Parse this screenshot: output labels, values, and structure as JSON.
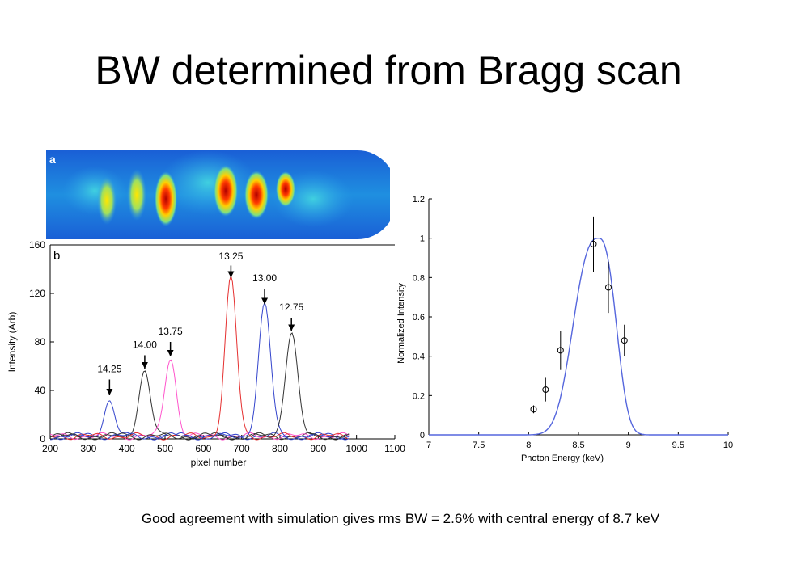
{
  "slide": {
    "title": "BW determined from Bragg scan",
    "caption": "Good agreement with simulation gives rms BW = 2.6% with central energy of 8.7 keV"
  },
  "colors": {
    "red": "#e53030",
    "blue": "#3344cc",
    "black": "#333333",
    "magenta": "#ff55cc",
    "fit": "#5566dd",
    "heat_bg": "#1a66dd"
  },
  "panel_a": {
    "label": "a"
  },
  "chart_data": [
    {
      "type": "line",
      "panel_label": "b",
      "xlabel": "pixel number",
      "ylabel": "Intensity (Arb)",
      "xlim": [
        200,
        1100
      ],
      "ylim": [
        0,
        160
      ],
      "xticks": [
        200,
        300,
        400,
        500,
        600,
        700,
        800,
        900,
        1000,
        1100
      ],
      "yticks": [
        0,
        40,
        80,
        120,
        160
      ],
      "peaks": [
        {
          "label": "14.25",
          "center": 355,
          "height": 30,
          "width": 14,
          "color": "blue"
        },
        {
          "label": "14.00",
          "center": 447,
          "height": 55,
          "width": 15,
          "color": "black"
        },
        {
          "label": "13.75",
          "center": 514,
          "height": 65,
          "width": 15,
          "color": "magenta"
        },
        {
          "label": "13.25",
          "center": 672,
          "height": 130,
          "width": 15,
          "color": "red"
        },
        {
          "label": "13.00",
          "center": 760,
          "height": 108,
          "width": 16,
          "color": "blue"
        },
        {
          "label": "12.75",
          "center": 830,
          "height": 86,
          "width": 16,
          "color": "black"
        }
      ],
      "annotations": [
        {
          "text": "14.25",
          "x": 355,
          "label_y": 55,
          "arrow_from": 49,
          "arrow_to": 36
        },
        {
          "text": "14.00",
          "x": 447,
          "label_y": 75,
          "arrow_from": 69,
          "arrow_to": 58
        },
        {
          "text": "13.75",
          "x": 514,
          "label_y": 86,
          "arrow_from": 80,
          "arrow_to": 68
        },
        {
          "text": "13.25",
          "x": 672,
          "label_y": 148,
          "arrow_from": 143,
          "arrow_to": 133
        },
        {
          "text": "13.00",
          "x": 760,
          "label_y": 130,
          "arrow_from": 124,
          "arrow_to": 111
        },
        {
          "text": "12.75",
          "x": 830,
          "label_y": 106,
          "arrow_from": 100,
          "arrow_to": 89
        }
      ]
    },
    {
      "type": "scatter",
      "xlabel": "Photon Energy (keV)",
      "ylabel": "Normalized Intensity",
      "xlim": [
        7,
        10
      ],
      "ylim": [
        0,
        1.2
      ],
      "xticks": [
        "7",
        "7.5",
        "8",
        "8.5",
        "9",
        "9.5",
        "10"
      ],
      "yticks": [
        "0",
        "0.2",
        "0.4",
        "0.6",
        "0.8",
        "1",
        "1.2"
      ],
      "points": [
        {
          "x": 8.05,
          "y": 0.13,
          "err": 0.02
        },
        {
          "x": 8.17,
          "y": 0.23,
          "err": 0.06
        },
        {
          "x": 8.32,
          "y": 0.43,
          "err": 0.1
        },
        {
          "x": 8.65,
          "y": 0.97,
          "err": 0.14
        },
        {
          "x": 8.8,
          "y": 0.75,
          "err": 0.13
        },
        {
          "x": 8.96,
          "y": 0.48,
          "err": 0.08
        }
      ],
      "fit": {
        "center": 8.7,
        "peak": 1.0
      }
    }
  ]
}
